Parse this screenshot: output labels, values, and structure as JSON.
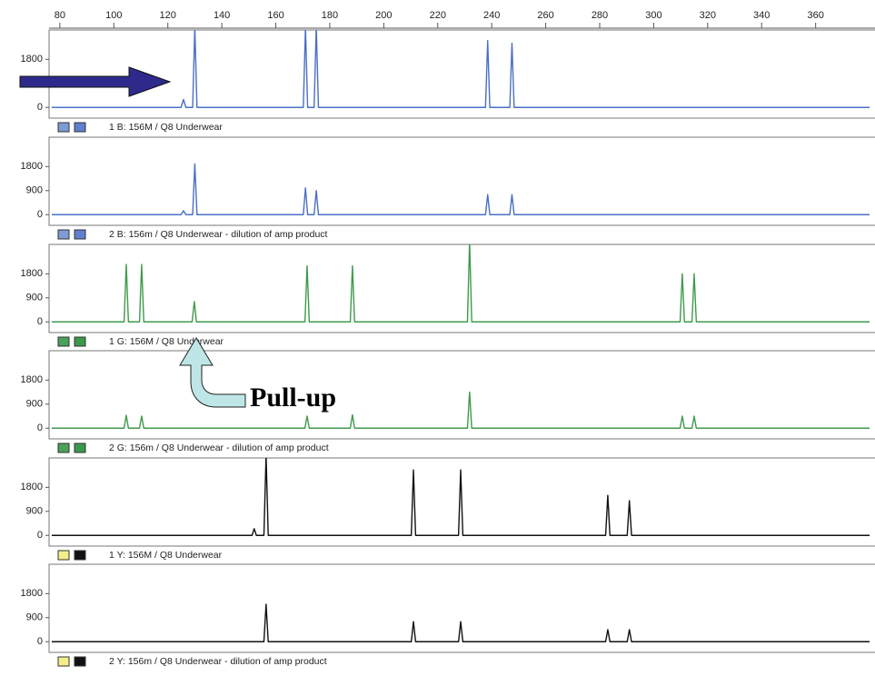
{
  "chart_data": [
    {
      "type": "line",
      "label": "1 B: 156M / Q8 Underwear",
      "color": "#4a6fc4",
      "xlim": [
        76,
        382
      ],
      "xticks": [
        80,
        100,
        120,
        140,
        160,
        180,
        200,
        220,
        240,
        260,
        280,
        300,
        320,
        340,
        360
      ],
      "ylim": [
        -400,
        2900
      ],
      "yticks": [
        0,
        1800
      ],
      "x": [
        77,
        124.9,
        125.8,
        126.7,
        129.2,
        130,
        130.8,
        170.2,
        171,
        171.8,
        174.2,
        175,
        175.8,
        237.7,
        238.5,
        239.3,
        246.7,
        247.5,
        248.3,
        380
      ],
      "values": [
        0,
        0,
        300,
        0,
        0,
        3000,
        0,
        0,
        3000,
        0,
        0,
        3000,
        0,
        0,
        2500,
        0,
        0,
        2400,
        0,
        0
      ]
    },
    {
      "type": "line",
      "label": "2 B: 156m / Q8 Underwear - dilution of amp product",
      "color": "#4a6fc4",
      "xlim": [
        76,
        382
      ],
      "ylim": [
        -400,
        2900
      ],
      "yticks": [
        0,
        900,
        1800
      ],
      "x": [
        77,
        124.9,
        125.8,
        126.7,
        129.2,
        130,
        130.8,
        170.2,
        171,
        171.8,
        174.2,
        175,
        175.8,
        237.7,
        238.5,
        239.3,
        246.7,
        247.5,
        248.3,
        380
      ],
      "values": [
        0,
        0,
        150,
        0,
        0,
        1900,
        0,
        0,
        1000,
        0,
        0,
        900,
        0,
        0,
        750,
        0,
        0,
        750,
        0,
        0
      ]
    },
    {
      "type": "line",
      "label": "1 G: 156M / Q8 Underwear",
      "color": "#3f9a4c",
      "annotation": "Pull-up",
      "xlim": [
        76,
        382
      ],
      "ylim": [
        -400,
        2900
      ],
      "yticks": [
        0,
        900,
        1800
      ],
      "x": [
        77,
        103.8,
        104.6,
        105.4,
        109.5,
        110.3,
        111.1,
        129,
        129.8,
        130.6,
        170.8,
        171.6,
        172.4,
        187.6,
        188.4,
        189.2,
        231,
        231.8,
        232.6,
        309.8,
        310.6,
        311.4,
        314.2,
        315,
        315.8,
        380
      ],
      "values": [
        0,
        0,
        2150,
        0,
        0,
        2150,
        0,
        0,
        760,
        0,
        0,
        2100,
        0,
        0,
        2100,
        0,
        0,
        3000,
        0,
        0,
        1800,
        0,
        0,
        1800,
        0,
        0
      ]
    },
    {
      "type": "line",
      "label": "2 G: 156m / Q8 Underwear - dilution of amp product",
      "color": "#3f9a4c",
      "xlim": [
        76,
        382
      ],
      "ylim": [
        -400,
        2900
      ],
      "yticks": [
        0,
        900,
        1800
      ],
      "x": [
        77,
        103.8,
        104.6,
        105.4,
        109.5,
        110.3,
        111.1,
        170.8,
        171.6,
        172.4,
        187.6,
        188.4,
        189.2,
        231,
        231.8,
        232.6,
        309.8,
        310.6,
        311.4,
        314.2,
        315,
        315.8,
        380
      ],
      "values": [
        0,
        0,
        480,
        0,
        0,
        450,
        0,
        0,
        450,
        0,
        0,
        500,
        0,
        0,
        1350,
        0,
        0,
        450,
        0,
        0,
        450,
        0,
        0
      ]
    },
    {
      "type": "line",
      "label": "1 Y: 156M / Q8 Underwear",
      "color": "#111111",
      "xlim": [
        76,
        382
      ],
      "ylim": [
        -400,
        2900
      ],
      "yticks": [
        0,
        900,
        1800
      ],
      "x": [
        77,
        151.2,
        152,
        152.8,
        155.6,
        156.4,
        157.2,
        210.2,
        211,
        211.8,
        227.7,
        228.5,
        229.3,
        282.2,
        283,
        283.8,
        290.2,
        291,
        291.8,
        380
      ],
      "values": [
        0,
        0,
        250,
        0,
        0,
        3000,
        0,
        0,
        2450,
        0,
        0,
        2450,
        0,
        0,
        1500,
        0,
        0,
        1300,
        0,
        0
      ]
    },
    {
      "type": "line",
      "label": "2 Y: 156m / Q8 Underwear - dilution of amp product",
      "color": "#111111",
      "xlim": [
        76,
        382
      ],
      "ylim": [
        -400,
        2900
      ],
      "yticks": [
        0,
        900,
        1800
      ],
      "x": [
        77,
        155.6,
        156.4,
        157.2,
        210.2,
        211,
        211.8,
        227.7,
        228.5,
        229.3,
        282.2,
        283,
        283.8,
        290.2,
        291,
        291.8,
        380
      ],
      "values": [
        0,
        0,
        1400,
        0,
        0,
        750,
        0,
        0,
        750,
        0,
        0,
        450,
        0,
        0,
        450,
        0,
        0
      ]
    }
  ]
}
